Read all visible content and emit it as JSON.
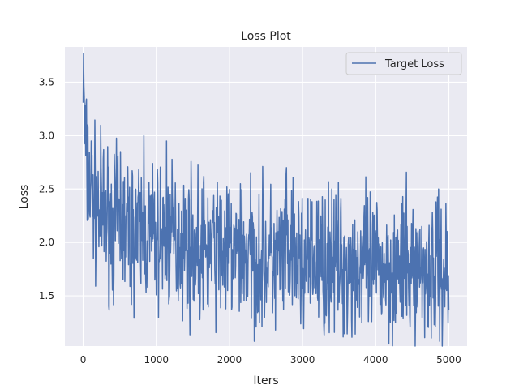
{
  "chart_data": {
    "type": "line",
    "title": "Loss Plot",
    "xlabel": "Iters",
    "ylabel": "Loss",
    "xlim": [
      -250,
      5250
    ],
    "ylim": [
      1.03,
      3.83
    ],
    "xticks": [
      0,
      1000,
      2000,
      3000,
      4000,
      5000
    ],
    "yticks": [
      1.5,
      2.0,
      2.5,
      3.0,
      3.5
    ],
    "xtick_labels": [
      "0",
      "1000",
      "2000",
      "3000",
      "4000",
      "5000"
    ],
    "ytick_labels": [
      "1.5",
      "2.0",
      "2.5",
      "3.0",
      "3.5"
    ],
    "grid": true,
    "legend_position": "top-right",
    "series": [
      {
        "name": "Target Loss",
        "color": "#4c72b0",
        "trend": {
          "x": [
            0,
            20,
            50,
            100,
            200,
            300,
            500,
            800,
            1000,
            1500,
            2000,
            2500,
            3000,
            3500,
            4000,
            4500,
            5000
          ],
          "y": [
            3.5,
            3.0,
            2.7,
            2.5,
            2.3,
            2.25,
            2.15,
            2.08,
            2.05,
            1.98,
            1.9,
            1.85,
            1.82,
            1.8,
            1.77,
            1.75,
            1.72
          ]
        },
        "peaks": [
          {
            "x": 5,
            "y": 3.77
          },
          {
            "x": 60,
            "y": 3.1
          },
          {
            "x": 110,
            "y": 2.95
          },
          {
            "x": 510,
            "y": 2.85
          },
          {
            "x": 830,
            "y": 3.0
          },
          {
            "x": 1140,
            "y": 2.95
          },
          {
            "x": 2150,
            "y": 2.55
          },
          {
            "x": 2780,
            "y": 2.7
          },
          {
            "x": 3400,
            "y": 2.5
          },
          {
            "x": 4860,
            "y": 2.5
          }
        ],
        "troughs": [
          {
            "x": 660,
            "y": 1.42
          },
          {
            "x": 1600,
            "y": 1.45
          },
          {
            "x": 2630,
            "y": 1.18
          },
          {
            "x": 3290,
            "y": 1.23
          },
          {
            "x": 3900,
            "y": 1.26
          },
          {
            "x": 4270,
            "y": 1.25
          }
        ],
        "noise_amplitude": 0.33,
        "x_end": 5000,
        "step": 5
      }
    ]
  }
}
